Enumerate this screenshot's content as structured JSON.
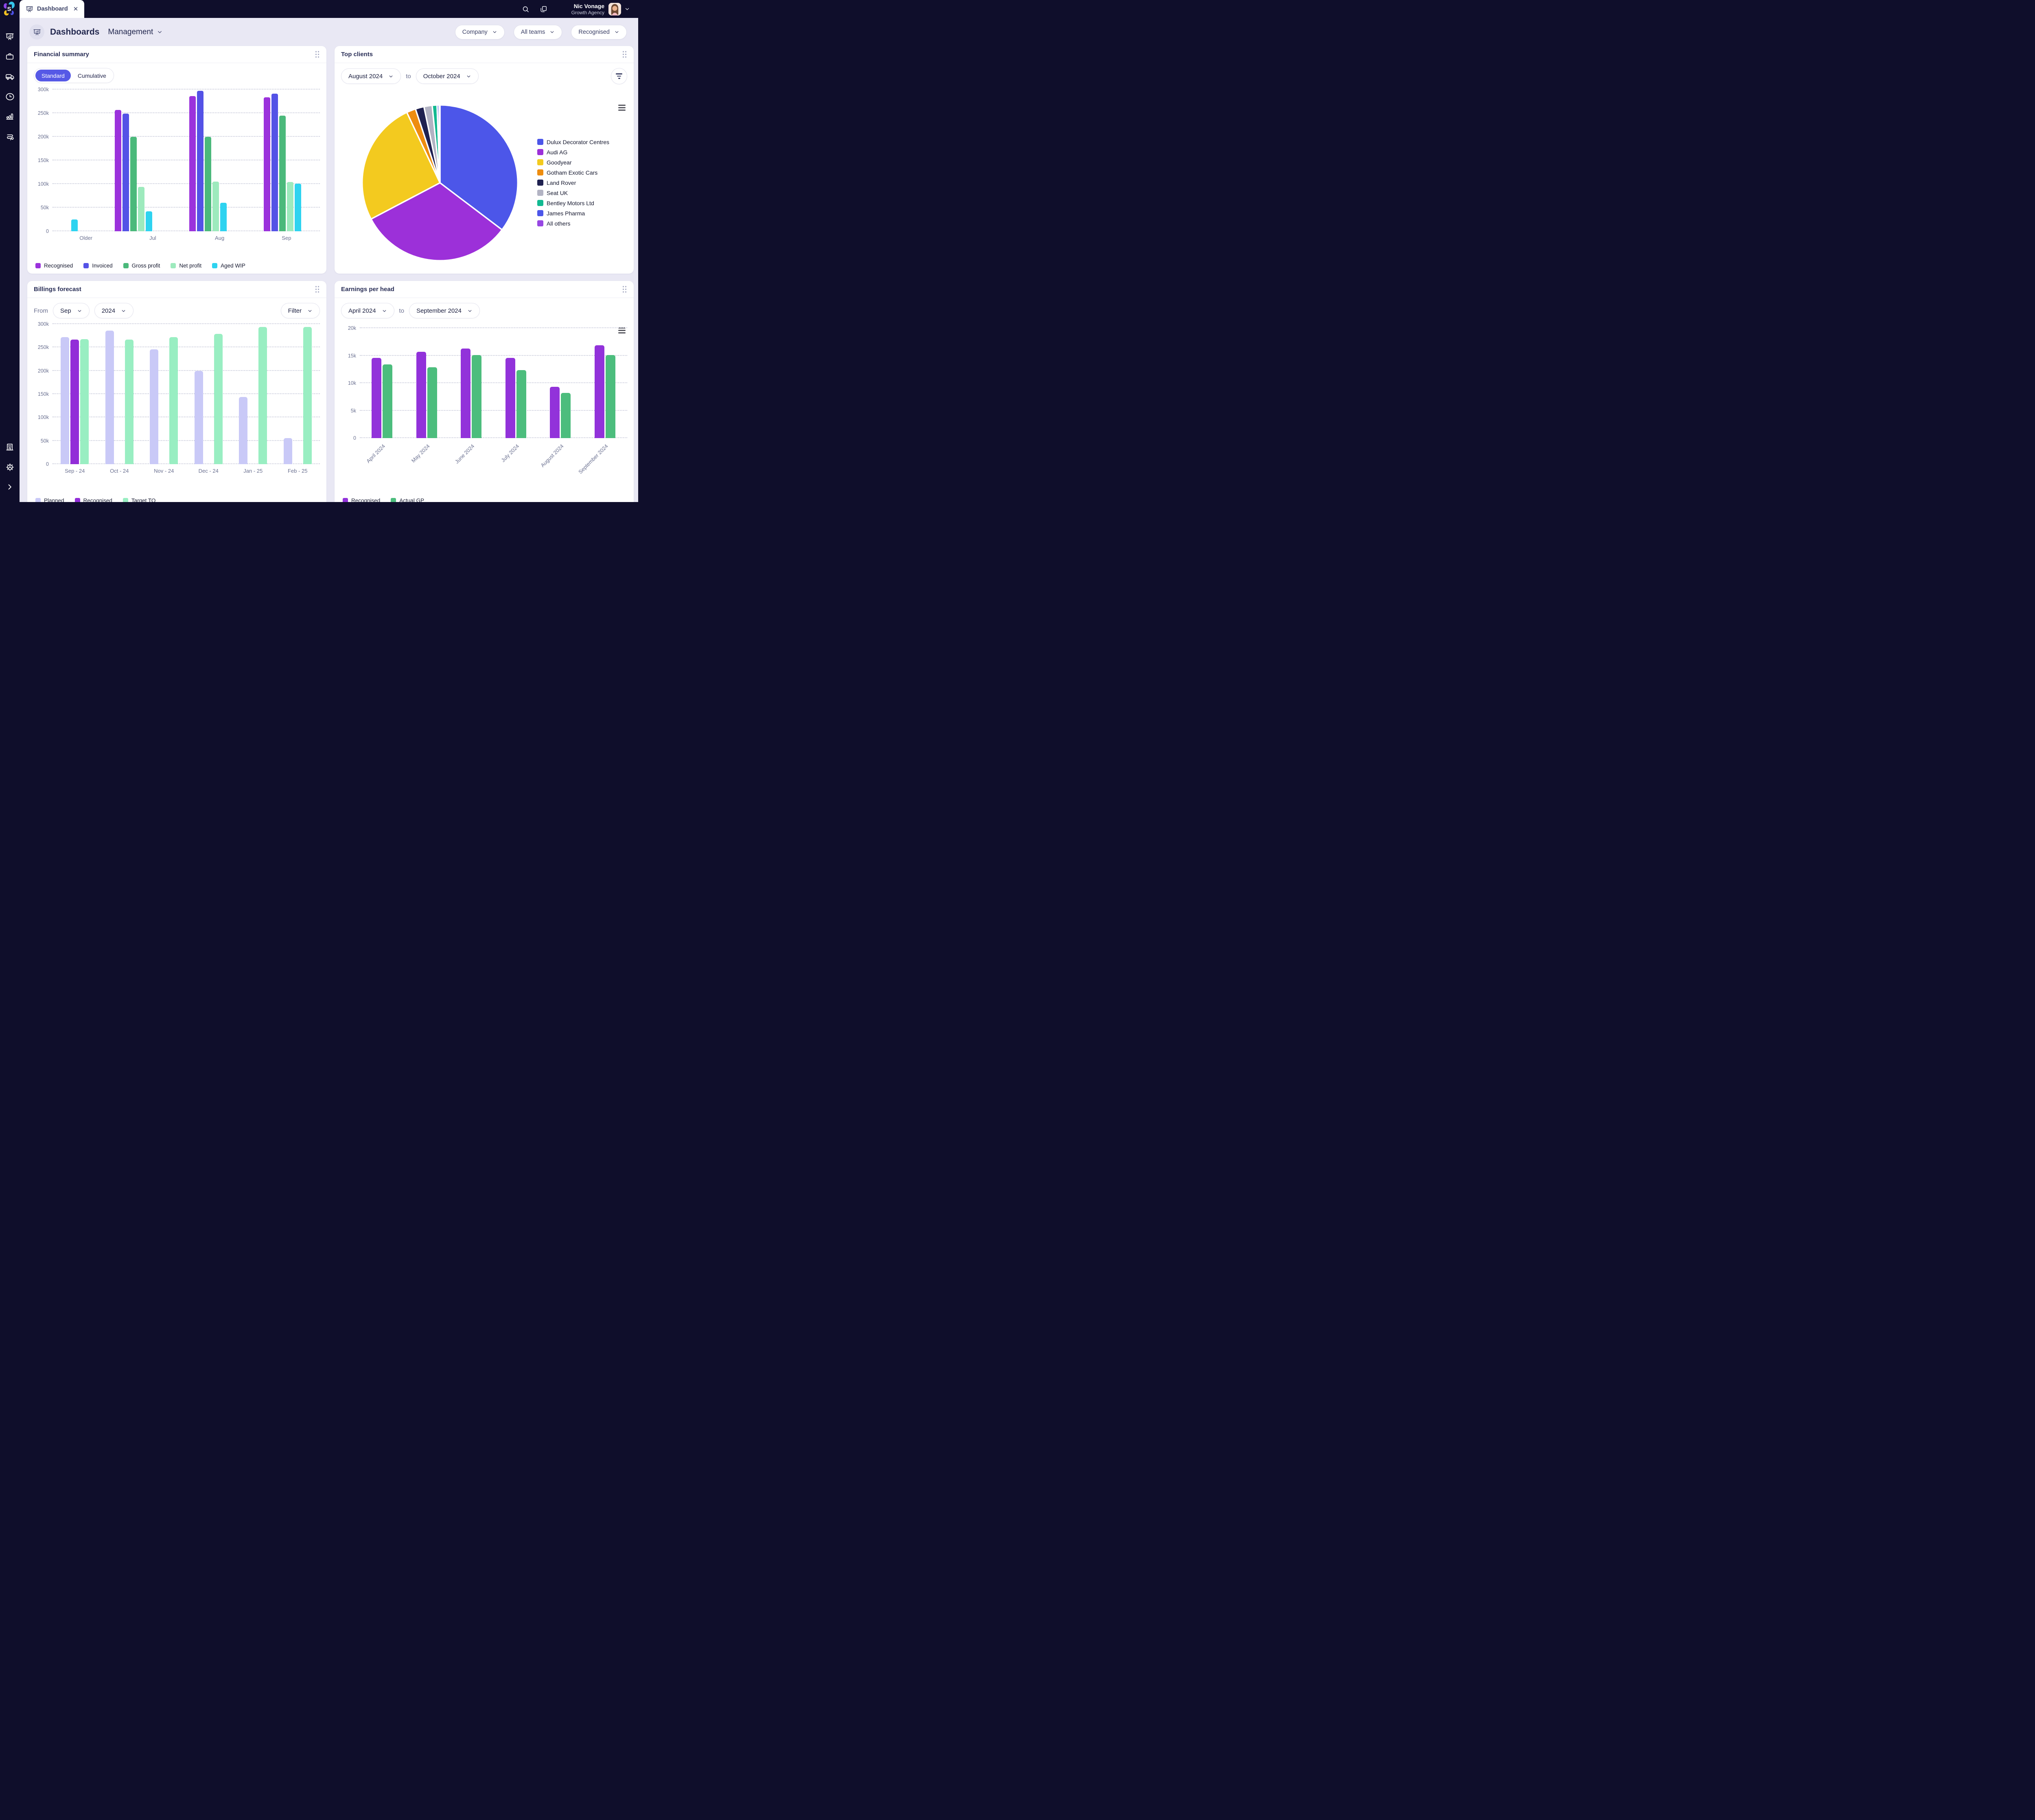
{
  "topbar": {
    "tab": {
      "label": "Dashboard"
    },
    "user": {
      "name": "Nic Vonage",
      "org": "Growth Agency"
    }
  },
  "header": {
    "title": "Dashboards",
    "dashboard_name": "Management",
    "filters": [
      {
        "label": "Company"
      },
      {
        "label": "All teams"
      },
      {
        "label": "Recognised"
      }
    ]
  },
  "sidebar": {
    "icons_top": [
      "dashboard-easel-icon",
      "briefcase-icon",
      "truck-icon",
      "clock-icon",
      "bar-chart-icon",
      "workflow-icon"
    ],
    "icons_bottom": [
      "building-icon",
      "gear-icon",
      "expand-chevron-icon"
    ]
  },
  "panels": {
    "financial_summary": {
      "title": "Financial summary",
      "toggle": {
        "options": [
          "Standard",
          "Cumulative"
        ],
        "active": "Standard"
      },
      "chart_data": {
        "type": "bar",
        "categories": [
          "Older",
          "Jul",
          "Aug",
          "Sep"
        ],
        "series": [
          {
            "name": "Recognised",
            "color": "#9b32dc",
            "values": [
              null,
              257000,
              286000,
              284000
            ]
          },
          {
            "name": "Invoiced",
            "color": "#5452e6",
            "values": [
              null,
              249000,
              297000,
              291000
            ]
          },
          {
            "name": "Gross profit",
            "color": "#4bb97b",
            "values": [
              null,
              200000,
              200000,
              245000
            ]
          },
          {
            "name": "Net profit",
            "color": "#9deabd",
            "values": [
              null,
              94000,
              105000,
              104000
            ]
          },
          {
            "name": "Aged WIP",
            "color": "#2ed3f0",
            "values": [
              25000,
              42000,
              60000,
              101000
            ]
          }
        ],
        "ylim": [
          0,
          300000
        ],
        "yticks": [
          "0",
          "50k",
          "100k",
          "150k",
          "200k",
          "250k",
          "300k"
        ],
        "grid": "dotted",
        "legend_position": "bottom"
      }
    },
    "top_clients": {
      "title": "Top clients",
      "date_from": "August 2024",
      "to_label": "to",
      "date_to": "October 2024",
      "chart_data": {
        "type": "pie",
        "legend_position": "right",
        "slices": [
          {
            "label": "Dulux Decorator Centres",
            "color": "#4c56e9",
            "pct": 35.3
          },
          {
            "label": "Audi AG",
            "color": "#9c30d9",
            "pct": 32.0
          },
          {
            "label": "Goodyear",
            "color": "#f3ca1f",
            "pct": 25.7
          },
          {
            "label": "Gotham Exotic Cars",
            "color": "#ee8d0f",
            "pct": 1.9
          },
          {
            "label": "Land Rover",
            "color": "#1f2150",
            "pct": 1.8
          },
          {
            "label": "Seat UK",
            "color": "#b2b3c3",
            "pct": 1.7
          },
          {
            "label": "Bentley Motors Ltd",
            "color": "#12b991",
            "pct": 1.0
          },
          {
            "label": "James Pharma",
            "color": "#4c56e9",
            "pct": 0.4
          },
          {
            "label": "All others",
            "color": "#9747e3",
            "pct": 0.2
          }
        ]
      }
    },
    "billings_forecast": {
      "title": "Billings forecast",
      "from_label": "From",
      "month": "Sep",
      "year": "2024",
      "filter_label": "Filter",
      "chart_data": {
        "type": "bar",
        "categories": [
          "Sep - 24",
          "Oct - 24",
          "Nov - 24",
          "Dec - 24",
          "Jan - 25",
          "Feb - 25"
        ],
        "series": [
          {
            "name": "Planned",
            "color": "#c9c9f7",
            "values": [
              272000,
              286000,
              246000,
              200000,
              144000,
              56000
            ]
          },
          {
            "name": "Recognised",
            "color": "#922dd8",
            "values": [
              267000,
              null,
              null,
              null,
              null,
              null
            ]
          },
          {
            "name": "Target TO",
            "color": "#99eec2",
            "values": [
              268000,
              267000,
              272000,
              279000,
              294000,
              294000
            ]
          }
        ],
        "ylim": [
          0,
          300000
        ],
        "yticks": [
          "0",
          "50k",
          "100k",
          "150k",
          "200k",
          "250k",
          "300k"
        ],
        "grid": "dotted",
        "legend_position": "bottom"
      }
    },
    "earnings_per_head": {
      "title": "Earnings per head",
      "date_from": "April 2024",
      "to_label": "to",
      "date_to": "September 2024",
      "chart_data": {
        "type": "bar",
        "categories": [
          "April 2024",
          "May 2024",
          "June 2024",
          "July 2024",
          "August 2024",
          "September 2024"
        ],
        "series": [
          {
            "name": "Recognised",
            "color": "#9232da",
            "values": [
              14600,
              15700,
              16300,
              14600,
              9300,
              16900
            ]
          },
          {
            "name": "Actual GP",
            "color": "#4cbd7d",
            "values": [
              13400,
              12900,
              15100,
              12400,
              8200,
              15100
            ]
          }
        ],
        "ylim": [
          0,
          20000
        ],
        "yticks": [
          "0",
          "5k",
          "10k",
          "15k",
          "20k"
        ],
        "grid": "dotted",
        "legend_position": "bottom",
        "x_labels_rotated": true
      }
    }
  }
}
